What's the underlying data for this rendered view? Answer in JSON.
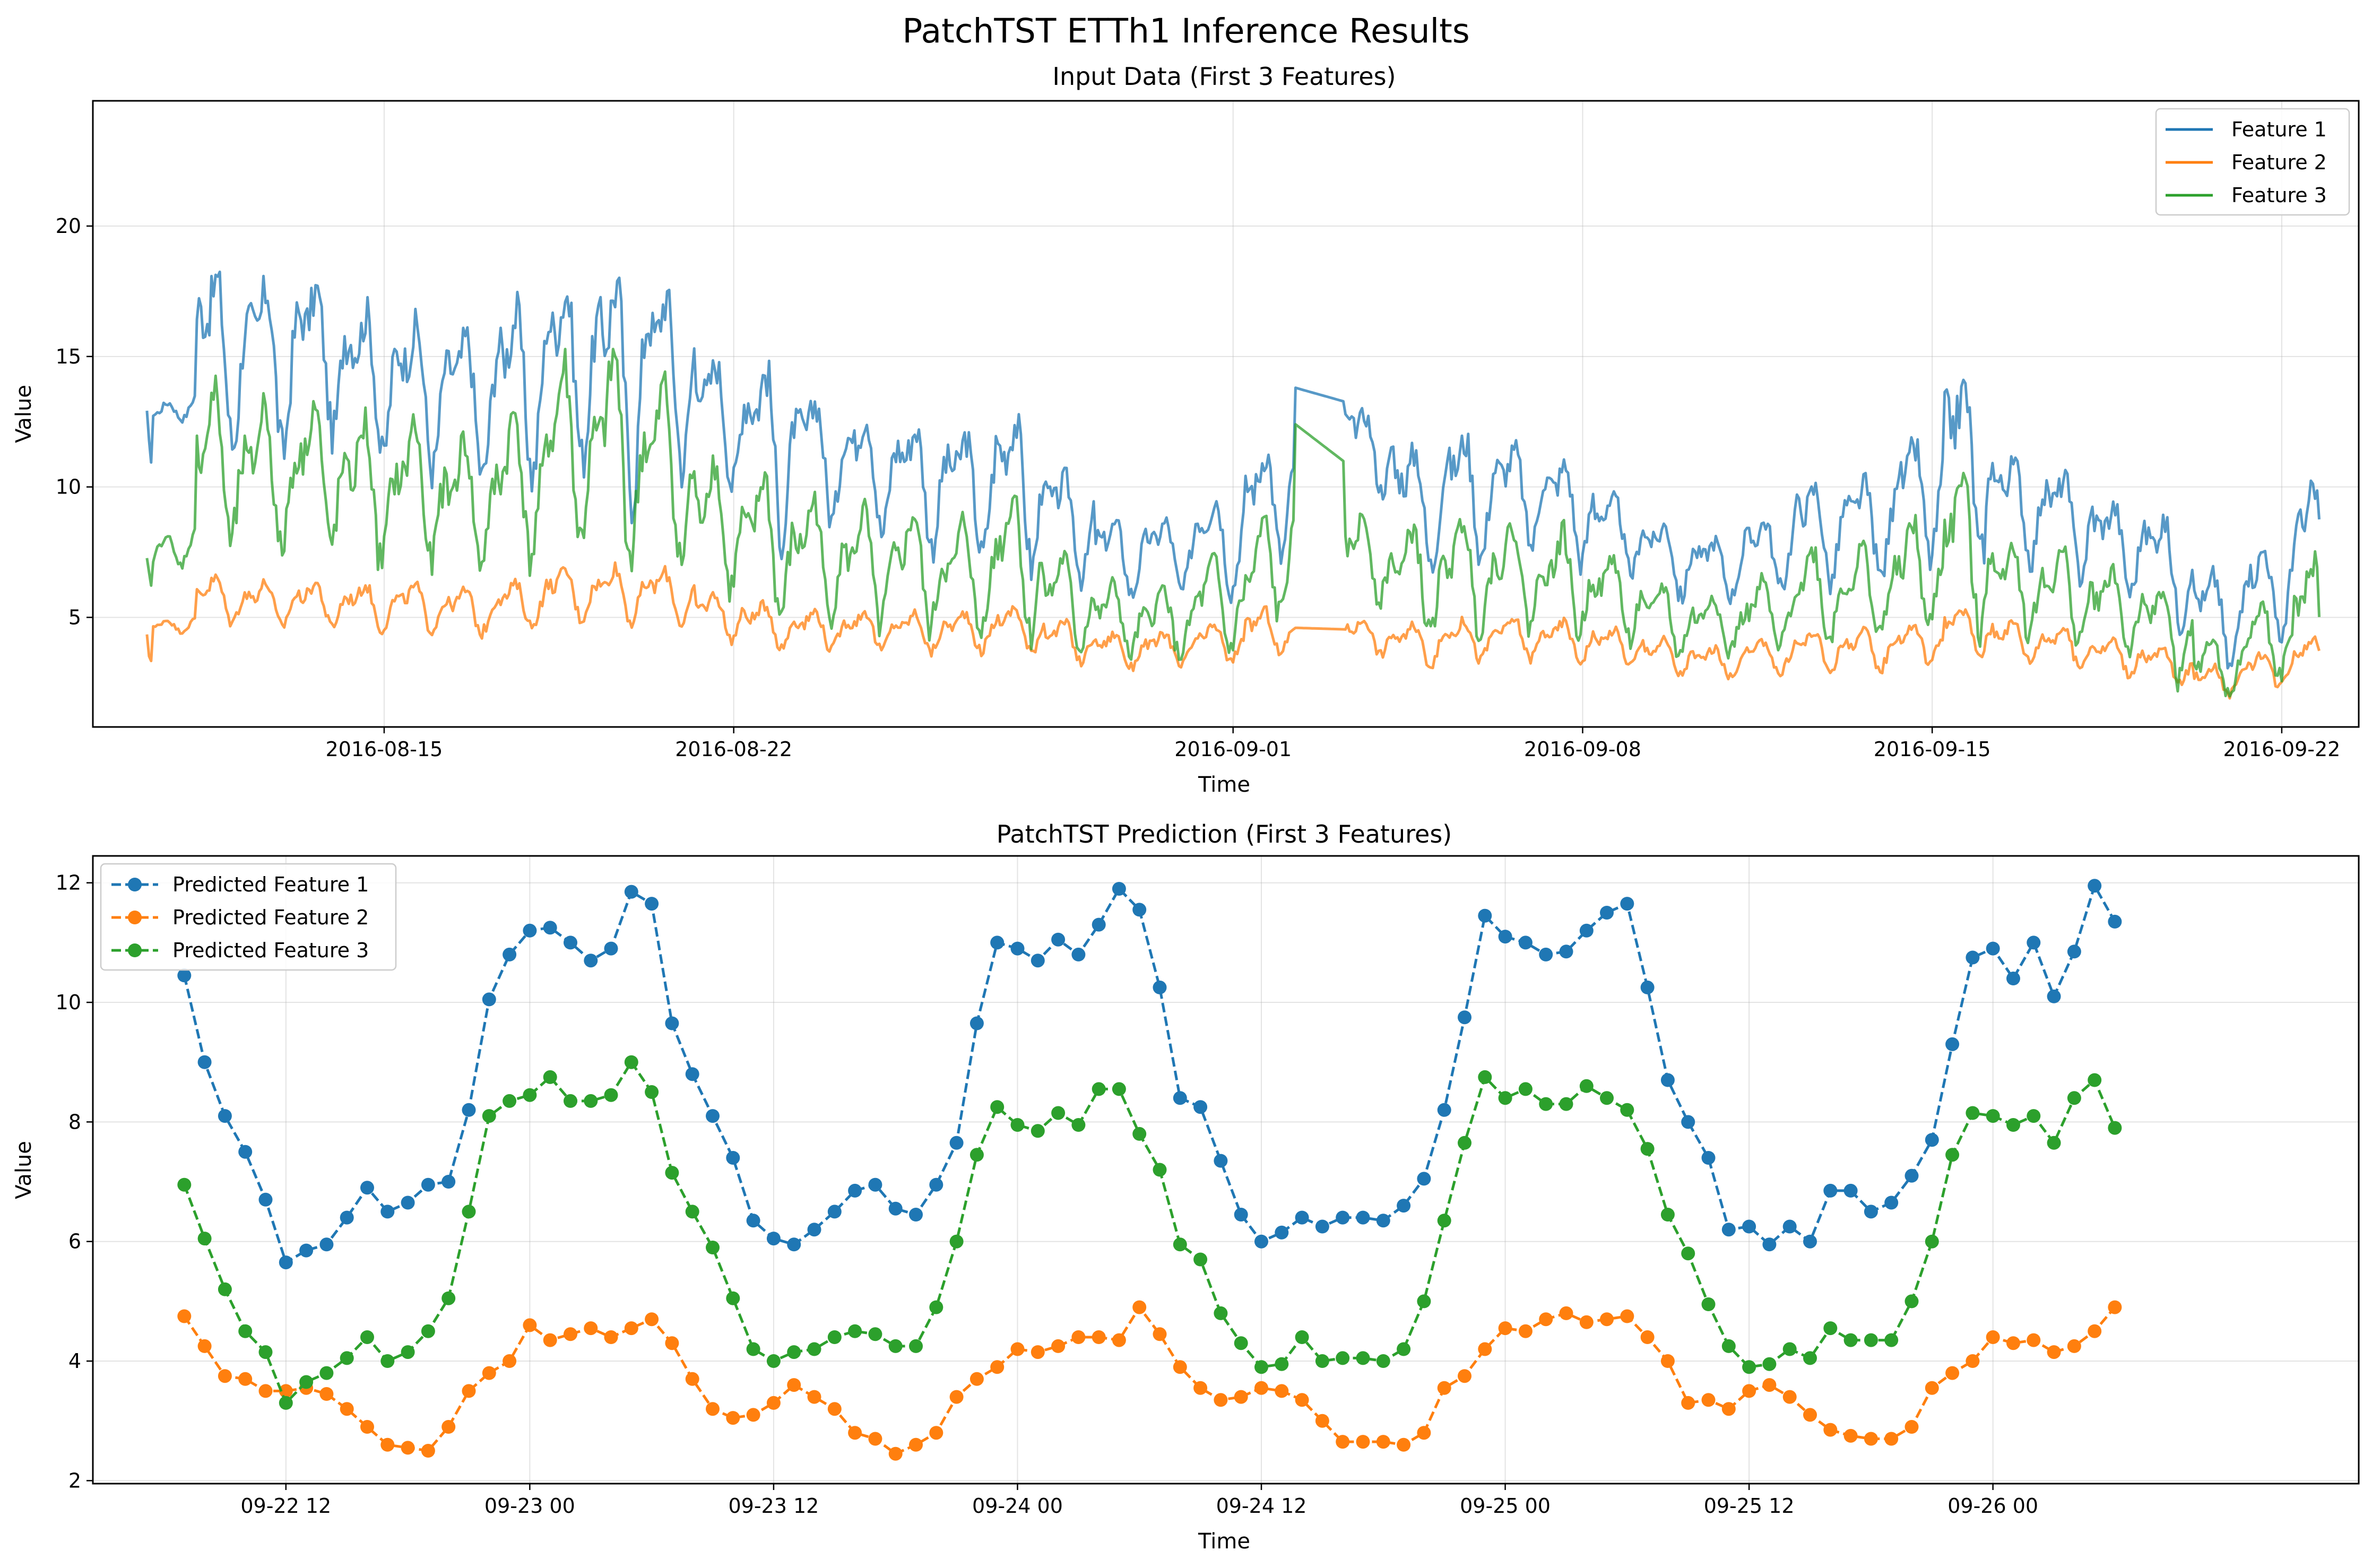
{
  "figure": {
    "title": "PatchTST ETTh1 Inference Results"
  },
  "chart_data": [
    {
      "type": "line",
      "title": "Input Data (First 3 Features)",
      "xlabel": "Time",
      "ylabel": "Value",
      "x_range": [
        "2016-08-10T06:00",
        "2016-09-22T18:00"
      ],
      "xlim": [
        "2016-08-09T04:00",
        "2016-09-23T13:00"
      ],
      "ylim": [
        0.8,
        24.8
      ],
      "x_ticks": [
        "2016-08-15",
        "2016-08-22",
        "2016-09-01",
        "2016-09-08",
        "2016-09-15",
        "2016-09-22"
      ],
      "y_ticks": [
        5,
        10,
        15,
        20
      ],
      "grid": true,
      "legend": "upper right",
      "sampling": "hourly, approximate shape read from the chart",
      "series": [
        {
          "name": "Feature 1",
          "color": "#1f77b4",
          "daily_mean": [
            12.5,
            15.5,
            15.0,
            15.5,
            14.5,
            14.0,
            13.5,
            14.0,
            15.0,
            14.5,
            15.0,
            13.0,
            12.0,
            11.5,
            11.0,
            10.5,
            10.0,
            10.5,
            9.0,
            7.5,
            7.5,
            8.0,
            9.0,
            13.8,
            12.0,
            9.5,
            10.0,
            10.0,
            9.5,
            8.5,
            7.5,
            7.0,
            7.5,
            8.5,
            8.5,
            9.5,
            11.5,
            9.5,
            9.0,
            8.0,
            7.5,
            5.0,
            6.0,
            7.5,
            9.0,
            8.5,
            7.5,
            11.5
          ],
          "daily_amp": [
            0.5,
            3.5,
            3.5,
            3.0,
            3.0,
            3.0,
            3.0,
            3.5,
            3.5,
            4.5,
            3.5,
            2.5,
            3.5,
            2.5,
            2.5,
            2.5,
            2.5,
            3.0,
            2.0,
            1.5,
            1.5,
            2.0,
            2.5,
            0.0,
            1.5,
            2.5,
            2.5,
            2.0,
            2.0,
            1.5,
            1.5,
            1.2,
            1.5,
            2.0,
            2.0,
            2.5,
            3.5,
            2.0,
            2.0,
            1.8,
            2.0,
            2.0,
            2.0,
            3.0,
            3.0,
            2.5,
            2.5,
            0.5
          ]
        },
        {
          "name": "Feature 2",
          "color": "#ff7f0e",
          "daily_mean": [
            4.5,
            5.8,
            5.6,
            5.6,
            5.5,
            5.5,
            5.3,
            5.5,
            6.0,
            6.0,
            6.0,
            5.2,
            4.8,
            4.6,
            4.6,
            4.5,
            4.5,
            4.7,
            4.2,
            3.8,
            3.8,
            4.0,
            4.5,
            4.6,
            4.4,
            4.0,
            4.2,
            4.3,
            4.2,
            4.0,
            3.6,
            3.3,
            3.5,
            3.8,
            3.8,
            4.0,
            4.6,
            4.2,
            4.0,
            3.6,
            3.3,
            2.6,
            3.0,
            3.5,
            4.2,
            4.0,
            3.4,
            4.0
          ],
          "daily_amp": [
            0.3,
            0.9,
            0.9,
            0.9,
            0.9,
            0.9,
            0.9,
            0.9,
            1.0,
            1.1,
            1.0,
            0.9,
            0.9,
            0.8,
            0.8,
            0.8,
            0.8,
            0.9,
            0.8,
            0.7,
            0.7,
            0.8,
            0.9,
            0.0,
            0.7,
            0.8,
            0.8,
            0.8,
            0.8,
            0.7,
            0.7,
            0.6,
            0.7,
            0.8,
            0.8,
            0.8,
            0.9,
            0.8,
            0.8,
            0.7,
            0.7,
            0.6,
            0.7,
            0.8,
            0.9,
            0.8,
            0.8,
            0.3
          ]
        },
        {
          "name": "Feature 3",
          "color": "#2ca02c",
          "daily_mean": [
            7.0,
            11.0,
            10.5,
            10.8,
            10.0,
            10.0,
            9.5,
            10.0,
            11.5,
            11.5,
            11.0,
            8.8,
            8.0,
            7.5,
            7.0,
            7.0,
            6.5,
            7.5,
            5.8,
            5.0,
            4.8,
            5.5,
            6.0,
            12.4,
            7.5,
            6.5,
            6.8,
            6.8,
            6.5,
            6.0,
            5.0,
            4.8,
            5.0,
            6.0,
            6.0,
            6.5,
            8.0,
            6.3,
            6.0,
            5.5,
            4.8,
            3.0,
            4.0,
            5.0,
            6.5,
            6.0,
            5.3,
            7.0
          ],
          "daily_amp": [
            0.8,
            3.0,
            3.0,
            2.8,
            2.8,
            2.8,
            2.5,
            3.0,
            3.5,
            4.0,
            3.5,
            2.5,
            2.8,
            2.3,
            2.3,
            2.3,
            2.3,
            2.8,
            1.8,
            1.4,
            1.4,
            1.8,
            2.2,
            0.0,
            1.6,
            2.2,
            2.2,
            2.0,
            2.0,
            1.6,
            1.4,
            1.2,
            1.4,
            1.8,
            1.8,
            2.2,
            3.0,
            1.8,
            1.8,
            1.6,
            1.8,
            1.2,
            1.6,
            2.3,
            2.5,
            2.2,
            2.2,
            0.8
          ]
        }
      ]
    },
    {
      "type": "line",
      "title": "PatchTST Prediction (First 3 Features)",
      "xlabel": "Time",
      "ylabel": "Value",
      "x_start": "2016-09-22T07:00",
      "x_step_hours": 1,
      "xlim": [
        "2016-09-22T02:30",
        "2016-09-26T18:00"
      ],
      "ylim": [
        1.95,
        12.45
      ],
      "x_ticks": [
        "09-22 12",
        "09-23 00",
        "09-23 12",
        "09-24 00",
        "09-24 12",
        "09-25 00",
        "09-25 12",
        "09-26 00"
      ],
      "y_ticks": [
        2,
        4,
        6,
        8,
        10,
        12
      ],
      "grid": true,
      "legend": "upper left",
      "series": [
        {
          "name": "Predicted Feature 1",
          "color": "#1f77b4",
          "values": [
            10.45,
            9.0,
            8.1,
            7.5,
            6.7,
            5.65,
            5.85,
            5.95,
            6.4,
            6.9,
            6.5,
            6.65,
            6.95,
            7.0,
            8.2,
            10.05,
            10.8,
            11.2,
            11.25,
            11.0,
            10.7,
            10.9,
            11.85,
            11.65,
            9.65,
            8.8,
            8.1,
            7.4,
            6.35,
            6.05,
            5.95,
            6.2,
            6.5,
            6.85,
            6.95,
            6.55,
            6.45,
            6.95,
            7.65,
            9.65,
            11.0,
            10.9,
            10.7,
            11.05,
            10.8,
            11.3,
            11.9,
            11.55,
            10.25,
            8.4,
            8.25,
            7.35,
            6.45,
            6.0,
            6.15,
            6.4,
            6.25,
            6.4,
            6.4,
            6.35,
            6.6,
            7.05,
            8.2,
            9.75,
            11.45,
            11.1,
            11.0,
            10.8,
            10.85,
            11.2,
            11.5,
            11.65,
            10.25,
            8.7,
            8.0,
            7.4,
            6.2,
            6.25,
            5.95,
            6.25,
            6.0,
            6.85,
            6.85,
            6.5,
            6.65,
            7.1,
            7.7,
            9.3,
            10.75,
            10.9,
            10.4,
            11.0,
            10.1,
            10.85,
            11.95,
            11.35
          ]
        },
        {
          "name": "Predicted Feature 2",
          "color": "#ff7f0e",
          "values": [
            4.75,
            4.25,
            3.75,
            3.7,
            3.5,
            3.5,
            3.55,
            3.45,
            3.2,
            2.9,
            2.6,
            2.55,
            2.5,
            2.9,
            3.5,
            3.8,
            4.0,
            4.6,
            4.35,
            4.45,
            4.55,
            4.4,
            4.55,
            4.7,
            4.3,
            3.7,
            3.2,
            3.05,
            3.1,
            3.3,
            3.6,
            3.4,
            3.2,
            2.8,
            2.7,
            2.45,
            2.6,
            2.8,
            3.4,
            3.7,
            3.9,
            4.2,
            4.15,
            4.25,
            4.4,
            4.4,
            4.35,
            4.9,
            4.45,
            3.9,
            3.55,
            3.35,
            3.4,
            3.55,
            3.5,
            3.35,
            3.0,
            2.65,
            2.65,
            2.65,
            2.6,
            2.8,
            3.55,
            3.75,
            4.2,
            4.55,
            4.5,
            4.7,
            4.8,
            4.65,
            4.7,
            4.75,
            4.4,
            4.0,
            3.3,
            3.35,
            3.2,
            3.5,
            3.6,
            3.4,
            3.1,
            2.85,
            2.75,
            2.7,
            2.7,
            2.9,
            3.55,
            3.8,
            4.0,
            4.4,
            4.3,
            4.35,
            4.15,
            4.25,
            4.5,
            4.9
          ]
        },
        {
          "name": "Predicted Feature 3",
          "color": "#2ca02c",
          "values": [
            6.95,
            6.05,
            5.2,
            4.5,
            4.15,
            3.3,
            3.65,
            3.8,
            4.05,
            4.4,
            4.0,
            4.15,
            4.5,
            5.05,
            6.5,
            8.1,
            8.35,
            8.45,
            8.75,
            8.35,
            8.35,
            8.45,
            9.0,
            8.5,
            7.15,
            6.5,
            5.9,
            5.05,
            4.2,
            4.0,
            4.15,
            4.2,
            4.4,
            4.5,
            4.45,
            4.25,
            4.25,
            4.9,
            6.0,
            7.45,
            8.25,
            7.95,
            7.85,
            8.15,
            7.95,
            8.55,
            8.55,
            7.8,
            7.2,
            5.95,
            5.7,
            4.8,
            4.3,
            3.9,
            3.95,
            4.4,
            4.0,
            4.05,
            4.05,
            4.0,
            4.2,
            5.0,
            6.35,
            7.65,
            8.75,
            8.4,
            8.55,
            8.3,
            8.3,
            8.6,
            8.4,
            8.2,
            7.55,
            6.45,
            5.8,
            4.95,
            4.25,
            3.9,
            3.95,
            4.2,
            4.05,
            4.55,
            4.35,
            4.35,
            4.35,
            5.0,
            6.0,
            7.45,
            8.15,
            8.1,
            7.95,
            8.1,
            7.65,
            8.4,
            8.7,
            7.9
          ]
        }
      ]
    }
  ]
}
